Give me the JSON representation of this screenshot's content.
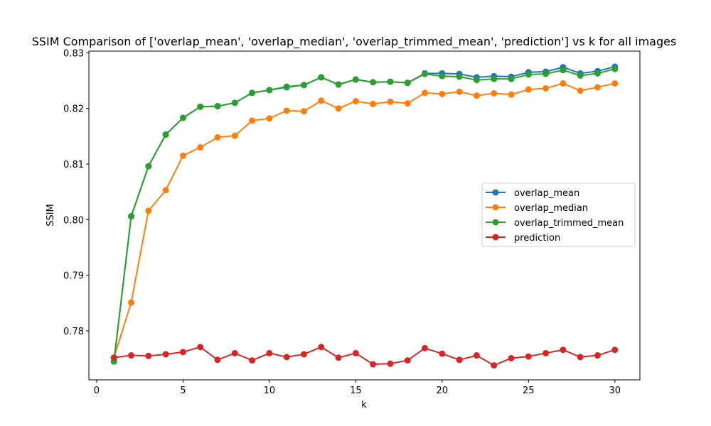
{
  "chart_data": {
    "type": "line",
    "title": "SSIM Comparison of ['overlap_mean', 'overlap_median', 'overlap_trimmed_mean', 'prediction'] vs k for all images",
    "xlabel": "k",
    "ylabel": "SSIM",
    "xlim": [
      -0.45,
      31.45
    ],
    "ylim": [
      0.7712,
      0.8303
    ],
    "x_ticks": [
      0,
      5,
      10,
      15,
      20,
      25,
      30
    ],
    "y_ticks": [
      0.78,
      0.79,
      0.8,
      0.81,
      0.82,
      0.83
    ],
    "y_tick_labels": [
      "0.78",
      "0.79",
      "0.80",
      "0.81",
      "0.82",
      "0.83"
    ],
    "grid": false,
    "legend_position": "center-right",
    "x": [
      1,
      2,
      3,
      4,
      5,
      6,
      7,
      8,
      9,
      10,
      11,
      12,
      13,
      14,
      15,
      16,
      17,
      18,
      19,
      20,
      21,
      22,
      23,
      24,
      25,
      26,
      27,
      28,
      29,
      30
    ],
    "series": [
      {
        "name": "overlap_mean",
        "color": "#1f77b4",
        "values": [
          0.7745,
          0.8006,
          0.8096,
          0.8153,
          0.8183,
          0.8203,
          0.8204,
          0.821,
          0.8228,
          0.8233,
          0.8238,
          0.8242,
          0.8256,
          0.8243,
          0.8252,
          0.8247,
          0.8248,
          0.8246,
          0.8263,
          0.8263,
          0.8262,
          0.8256,
          0.8258,
          0.8257,
          0.8265,
          0.8266,
          0.8274,
          0.8263,
          0.8267,
          0.8275
        ]
      },
      {
        "name": "overlap_median",
        "color": "#ff7f0e",
        "values": [
          0.7752,
          0.7851,
          0.8016,
          0.8053,
          0.8115,
          0.813,
          0.8148,
          0.8151,
          0.8178,
          0.8182,
          0.8196,
          0.8195,
          0.8214,
          0.82,
          0.8213,
          0.8208,
          0.8212,
          0.8209,
          0.8228,
          0.8226,
          0.823,
          0.8223,
          0.8227,
          0.8225,
          0.8234,
          0.8236,
          0.8245,
          0.8232,
          0.8238,
          0.8245
        ]
      },
      {
        "name": "overlap_trimmed_mean",
        "color": "#2ca02c",
        "values": [
          0.7745,
          0.8006,
          0.8096,
          0.8153,
          0.8183,
          0.8203,
          0.8204,
          0.821,
          0.8228,
          0.8233,
          0.8239,
          0.8242,
          0.8256,
          0.8243,
          0.8252,
          0.8247,
          0.8248,
          0.8246,
          0.8262,
          0.8258,
          0.8257,
          0.8251,
          0.8253,
          0.8253,
          0.8261,
          0.8262,
          0.8269,
          0.8259,
          0.8263,
          0.8271
        ]
      },
      {
        "name": "prediction",
        "color": "#d62728",
        "values": [
          0.7752,
          0.7756,
          0.7755,
          0.7758,
          0.7762,
          0.7771,
          0.7748,
          0.776,
          0.7747,
          0.776,
          0.7753,
          0.7758,
          0.7771,
          0.7752,
          0.776,
          0.774,
          0.7741,
          0.7747,
          0.7769,
          0.7759,
          0.7748,
          0.7756,
          0.7738,
          0.7751,
          0.7754,
          0.776,
          0.7766,
          0.7753,
          0.7756,
          0.7766
        ]
      }
    ]
  }
}
